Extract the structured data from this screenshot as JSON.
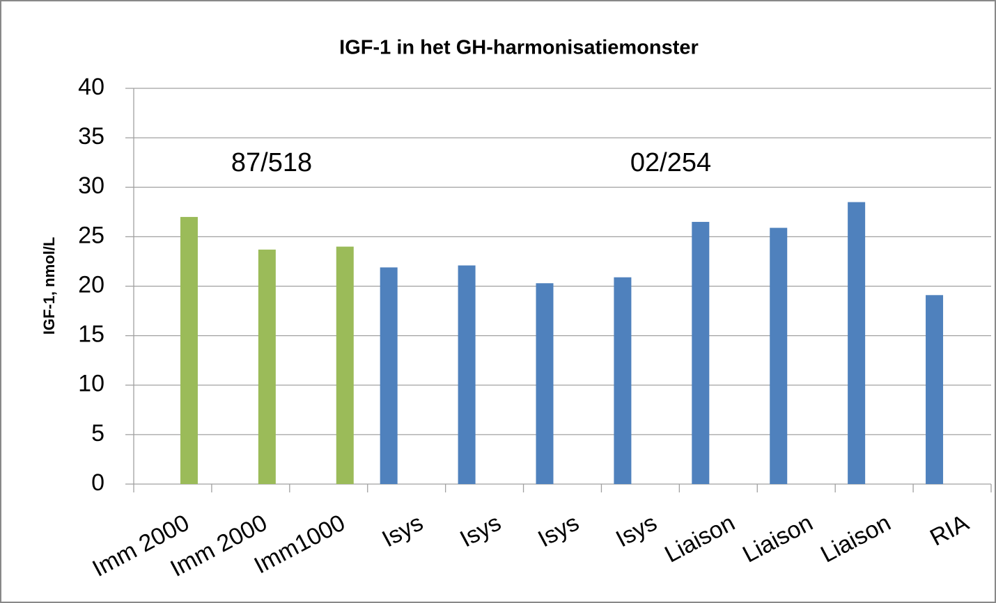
{
  "chart_data": {
    "type": "bar",
    "title": "IGF-1 in het GH-harmonisatiemonster",
    "y_label": "IGF-1, nmol/L",
    "categories": [
      "Imm 2000",
      "Imm 2000",
      "Imm1000",
      "Isys",
      "Isys",
      "Isys",
      "Isys",
      "Liaison",
      "Liaison",
      "Liaison",
      "RIA"
    ],
    "series": [
      {
        "color": "#9bbb59",
        "values": [
          27.0,
          23.7,
          24.0,
          null,
          null,
          null,
          null,
          null,
          null,
          null,
          null
        ]
      },
      {
        "color": "#4f81bd",
        "values": [
          null,
          null,
          null,
          21.9,
          22.1,
          20.3,
          20.9,
          26.5,
          25.9,
          28.5,
          19.1
        ]
      }
    ],
    "annotations": [
      "87/518",
      "02/254"
    ],
    "ylim": [
      0,
      40
    ],
    "yticks": [
      0,
      5,
      10,
      15,
      20,
      25,
      30,
      35,
      40
    ],
    "grid": true
  }
}
